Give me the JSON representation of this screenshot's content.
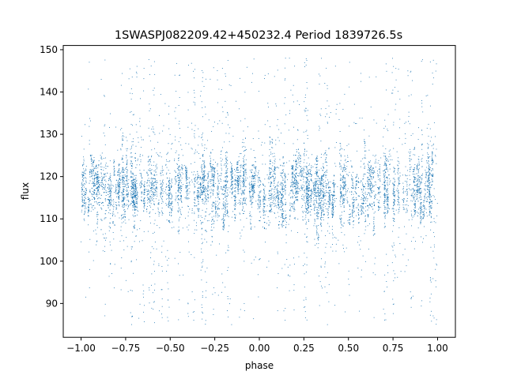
{
  "chart_data": {
    "type": "scatter",
    "title": "1SWASPJ082209.42+450232.4 Period 1839726.5s",
    "xlabel": "phase",
    "ylabel": "flux",
    "xlim": [
      -1.1,
      1.1
    ],
    "ylim": [
      82,
      151
    ],
    "x_ticks": [
      -1.0,
      -0.75,
      -0.5,
      -0.25,
      0.0,
      0.25,
      0.5,
      0.75,
      1.0
    ],
    "x_tick_labels": [
      "−1.00",
      "−0.75",
      "−0.50",
      "−0.25",
      "0.00",
      "0.25",
      "0.50",
      "0.75",
      "1.00"
    ],
    "y_ticks": [
      90,
      100,
      110,
      120,
      130,
      140,
      150
    ],
    "y_tick_labels": [
      "90",
      "100",
      "110",
      "120",
      "130",
      "140",
      "150"
    ],
    "grid": false,
    "point_color": "#1f77b4",
    "x_range": [
      -1.0,
      1.0
    ],
    "y_core_range": [
      106,
      127
    ],
    "y_core_center": 117,
    "y_scatter_range": [
      85,
      148
    ]
  }
}
